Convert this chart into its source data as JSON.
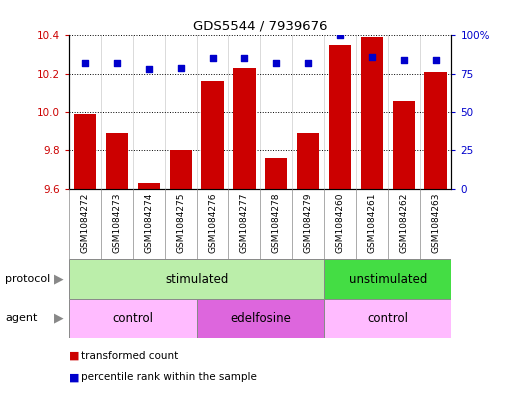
{
  "title": "GDS5544 / 7939676",
  "samples": [
    "GSM1084272",
    "GSM1084273",
    "GSM1084274",
    "GSM1084275",
    "GSM1084276",
    "GSM1084277",
    "GSM1084278",
    "GSM1084279",
    "GSM1084260",
    "GSM1084261",
    "GSM1084262",
    "GSM1084263"
  ],
  "transformed_count": [
    9.99,
    9.89,
    9.63,
    9.8,
    10.16,
    10.23,
    9.76,
    9.89,
    10.35,
    10.39,
    10.06,
    10.21
  ],
  "percentile_rank": [
    82,
    82,
    78,
    79,
    85,
    85,
    82,
    82,
    100,
    86,
    84,
    84
  ],
  "ylim_left": [
    9.6,
    10.4
  ],
  "ylim_right": [
    0,
    100
  ],
  "yticks_left": [
    9.6,
    9.8,
    10.0,
    10.2,
    10.4
  ],
  "yticks_right": [
    0,
    25,
    50,
    75,
    100
  ],
  "bar_color": "#cc0000",
  "dot_color": "#0000cc",
  "protocol_groups": [
    {
      "label": "stimulated",
      "start": 0,
      "end": 8,
      "color": "#bbeeaa"
    },
    {
      "label": "unstimulated",
      "start": 8,
      "end": 12,
      "color": "#44dd44"
    }
  ],
  "agent_groups": [
    {
      "label": "control",
      "start": 0,
      "end": 4,
      "color": "#ffbbff"
    },
    {
      "label": "edelfosine",
      "start": 4,
      "end": 8,
      "color": "#dd66dd"
    },
    {
      "label": "control",
      "start": 8,
      "end": 12,
      "color": "#ffbbff"
    }
  ],
  "legend_bar_label": "transformed count",
  "legend_dot_label": "percentile rank within the sample",
  "protocol_label": "protocol",
  "agent_label": "agent",
  "tick_label_color_left": "#cc0000",
  "tick_label_color_right": "#0000cc",
  "xtick_bg_color": "#cccccc",
  "spine_color": "#000000"
}
